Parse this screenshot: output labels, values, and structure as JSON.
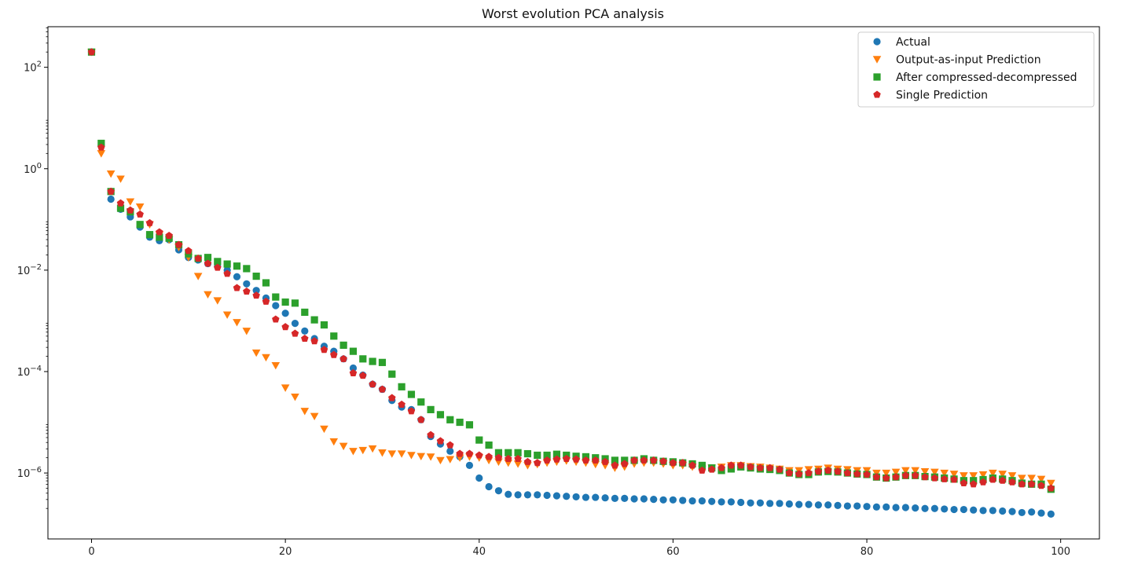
{
  "chart_data": {
    "type": "scatter",
    "title": "Worst evolution PCA analysis",
    "xlabel": "",
    "ylabel": "",
    "yscale": "log",
    "xlim": [
      -4.5,
      104
    ],
    "ylim_log10": [
      -7.3,
      2.8
    ],
    "x_ticks": [
      0,
      20,
      40,
      60,
      80,
      100
    ],
    "y_ticks_exp": [
      -6,
      -4,
      -2,
      0,
      2
    ],
    "grid": false,
    "legend_position": "top-right",
    "x": [
      0,
      1,
      2,
      3,
      4,
      5,
      6,
      7,
      8,
      9,
      10,
      11,
      12,
      13,
      14,
      15,
      16,
      17,
      18,
      19,
      20,
      21,
      22,
      23,
      24,
      25,
      26,
      27,
      28,
      29,
      30,
      31,
      32,
      33,
      34,
      35,
      36,
      37,
      38,
      39,
      40,
      41,
      42,
      43,
      44,
      45,
      46,
      47,
      48,
      49,
      50,
      51,
      52,
      53,
      54,
      55,
      56,
      57,
      58,
      59,
      60,
      61,
      62,
      63,
      64,
      65,
      66,
      67,
      68,
      69,
      70,
      71,
      72,
      73,
      74,
      75,
      76,
      77,
      78,
      79,
      80,
      81,
      82,
      83,
      84,
      85,
      86,
      87,
      88,
      89,
      90,
      91,
      92,
      93,
      94,
      95,
      96,
      97,
      98,
      99
    ],
    "series": [
      {
        "name": "Actual",
        "marker": "circle",
        "color": "#1f77b4",
        "log10_values": [
          2.3,
          0.45,
          -0.6,
          -0.8,
          -0.95,
          -1.15,
          -1.35,
          -1.42,
          -1.4,
          -1.6,
          -1.75,
          -1.8,
          -1.87,
          -1.93,
          -2.0,
          -2.13,
          -2.27,
          -2.4,
          -2.55,
          -2.7,
          -2.85,
          -3.05,
          -3.2,
          -3.35,
          -3.5,
          -3.6,
          -3.75,
          -3.93,
          -4.07,
          -4.25,
          -4.35,
          -4.57,
          -4.7,
          -4.75,
          -4.95,
          -5.28,
          -5.43,
          -5.57,
          -5.68,
          -5.85,
          -6.1,
          -6.27,
          -6.35,
          -6.42,
          -6.43,
          -6.43,
          -6.43,
          -6.44,
          -6.45,
          -6.46,
          -6.47,
          -6.48,
          -6.48,
          -6.49,
          -6.5,
          -6.5,
          -6.51,
          -6.51,
          -6.52,
          -6.53,
          -6.53,
          -6.54,
          -6.55,
          -6.55,
          -6.56,
          -6.57,
          -6.57,
          -6.58,
          -6.59,
          -6.59,
          -6.6,
          -6.6,
          -6.61,
          -6.62,
          -6.62,
          -6.63,
          -6.63,
          -6.64,
          -6.65,
          -6.65,
          -6.66,
          -6.67,
          -6.67,
          -6.68,
          -6.68,
          -6.69,
          -6.7,
          -6.7,
          -6.71,
          -6.72,
          -6.72,
          -6.73,
          -6.74,
          -6.74,
          -6.75,
          -6.76,
          -6.78,
          -6.77,
          -6.79,
          -6.81
        ]
      },
      {
        "name": "Output-as-input Prediction",
        "marker": "triangle-down",
        "color": "#ff7f0e",
        "log10_values": [
          2.3,
          0.3,
          -0.1,
          -0.2,
          -0.65,
          -0.75,
          -1.1,
          -1.3,
          -1.4,
          -1.55,
          -1.75,
          -2.12,
          -2.48,
          -2.6,
          -2.88,
          -3.03,
          -3.2,
          -3.63,
          -3.72,
          -3.88,
          -4.32,
          -4.5,
          -4.78,
          -4.88,
          -5.13,
          -5.38,
          -5.47,
          -5.57,
          -5.55,
          -5.52,
          -5.6,
          -5.62,
          -5.62,
          -5.65,
          -5.67,
          -5.68,
          -5.75,
          -5.73,
          -5.7,
          -5.68,
          -5.7,
          -5.75,
          -5.78,
          -5.8,
          -5.82,
          -5.85,
          -5.83,
          -5.8,
          -5.78,
          -5.76,
          -5.78,
          -5.8,
          -5.83,
          -5.85,
          -5.9,
          -5.88,
          -5.82,
          -5.8,
          -5.8,
          -5.82,
          -5.85,
          -5.85,
          -5.88,
          -5.92,
          -5.9,
          -5.88,
          -5.85,
          -5.85,
          -5.87,
          -5.88,
          -5.9,
          -5.92,
          -5.95,
          -5.95,
          -5.93,
          -5.92,
          -5.9,
          -5.92,
          -5.93,
          -5.95,
          -5.95,
          -6.0,
          -6.0,
          -5.98,
          -5.95,
          -5.95,
          -5.97,
          -5.98,
          -6.0,
          -6.02,
          -6.05,
          -6.05,
          -6.03,
          -6.0,
          -6.02,
          -6.05,
          -6.1,
          -6.1,
          -6.12,
          -6.2
        ]
      },
      {
        "name": "After compressed-decompressed",
        "marker": "square",
        "color": "#2ca02c",
        "log10_values": [
          2.3,
          0.5,
          -0.45,
          -0.78,
          -0.85,
          -1.1,
          -1.3,
          -1.35,
          -1.37,
          -1.5,
          -1.68,
          -1.77,
          -1.75,
          -1.83,
          -1.88,
          -1.92,
          -1.97,
          -2.12,
          -2.25,
          -2.53,
          -2.63,
          -2.65,
          -2.83,
          -2.98,
          -3.08,
          -3.3,
          -3.48,
          -3.6,
          -3.75,
          -3.8,
          -3.82,
          -4.05,
          -4.3,
          -4.45,
          -4.6,
          -4.75,
          -4.85,
          -4.95,
          -5.0,
          -5.05,
          -5.35,
          -5.45,
          -5.6,
          -5.6,
          -5.6,
          -5.62,
          -5.65,
          -5.65,
          -5.63,
          -5.65,
          -5.67,
          -5.68,
          -5.7,
          -5.72,
          -5.75,
          -5.75,
          -5.75,
          -5.72,
          -5.75,
          -5.77,
          -5.78,
          -5.8,
          -5.82,
          -5.85,
          -5.9,
          -5.95,
          -5.92,
          -5.88,
          -5.9,
          -5.92,
          -5.93,
          -5.95,
          -6.0,
          -6.03,
          -6.03,
          -5.98,
          -5.97,
          -5.98,
          -6.0,
          -6.02,
          -6.03,
          -6.08,
          -6.1,
          -6.08,
          -6.05,
          -6.05,
          -6.07,
          -6.08,
          -6.1,
          -6.12,
          -6.15,
          -6.15,
          -6.13,
          -6.1,
          -6.12,
          -6.15,
          -6.2,
          -6.22,
          -6.22,
          -6.32
        ]
      },
      {
        "name": "Single Prediction",
        "marker": "pentagon",
        "color": "#d62728",
        "log10_values": [
          2.3,
          0.42,
          -0.45,
          -0.68,
          -0.82,
          -0.9,
          -1.07,
          -1.25,
          -1.32,
          -1.5,
          -1.62,
          -1.77,
          -1.87,
          -1.95,
          -2.07,
          -2.35,
          -2.42,
          -2.5,
          -2.62,
          -2.97,
          -3.12,
          -3.25,
          -3.35,
          -3.4,
          -3.57,
          -3.67,
          -3.75,
          -4.03,
          -4.08,
          -4.25,
          -4.35,
          -4.52,
          -4.65,
          -4.78,
          -4.95,
          -5.25,
          -5.37,
          -5.45,
          -5.62,
          -5.62,
          -5.65,
          -5.68,
          -5.7,
          -5.72,
          -5.72,
          -5.78,
          -5.8,
          -5.75,
          -5.73,
          -5.72,
          -5.73,
          -5.75,
          -5.75,
          -5.78,
          -5.85,
          -5.82,
          -5.75,
          -5.75,
          -5.75,
          -5.77,
          -5.8,
          -5.8,
          -5.85,
          -5.95,
          -5.93,
          -5.9,
          -5.85,
          -5.85,
          -5.88,
          -5.9,
          -5.9,
          -5.93,
          -6.0,
          -6.02,
          -6.0,
          -5.97,
          -5.95,
          -5.97,
          -6.0,
          -6.02,
          -6.03,
          -6.08,
          -6.1,
          -6.08,
          -6.05,
          -6.05,
          -6.08,
          -6.1,
          -6.12,
          -6.13,
          -6.2,
          -6.22,
          -6.18,
          -6.13,
          -6.15,
          -6.18,
          -6.22,
          -6.22,
          -6.25,
          -6.3
        ]
      }
    ]
  }
}
